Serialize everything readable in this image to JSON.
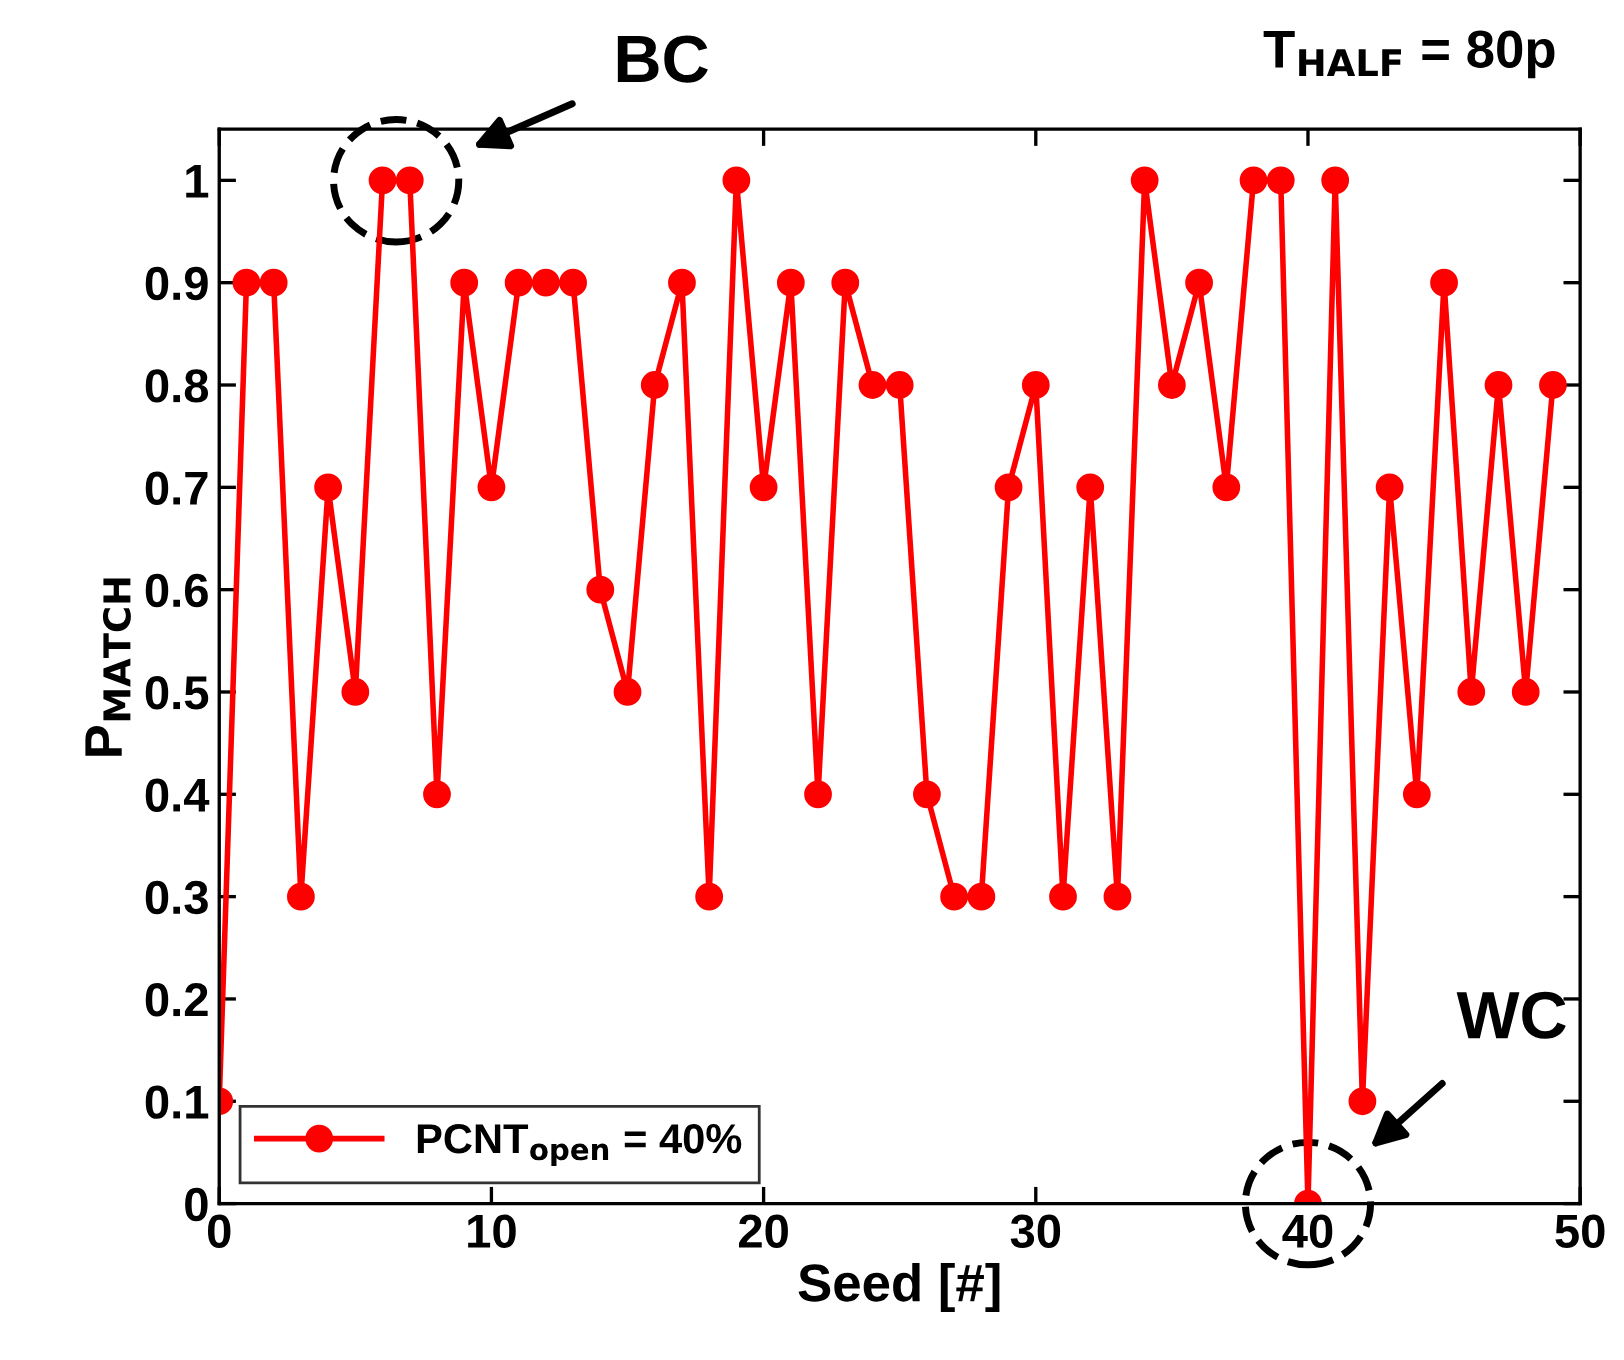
{
  "chart_data": {
    "type": "line",
    "xlabel": "Seed [#]",
    "ylabel": "P$_{MATCH}$",
    "x": [
      0,
      1,
      2,
      3,
      4,
      5,
      6,
      7,
      8,
      9,
      10,
      11,
      12,
      13,
      14,
      15,
      16,
      17,
      18,
      19,
      20,
      21,
      22,
      23,
      24,
      25,
      26,
      27,
      28,
      29,
      30,
      31,
      32,
      33,
      34,
      35,
      36,
      37,
      38,
      39,
      40,
      41,
      42,
      43,
      44,
      45,
      46,
      47,
      48,
      49
    ],
    "series": [
      {
        "name": "PCNT$_{open}$ = 40%",
        "color": "#ff0000",
        "values": [
          0.1,
          0.9,
          0.9,
          0.3,
          0.7,
          0.5,
          1,
          1,
          0.4,
          0.9,
          0.7,
          0.9,
          0.9,
          0.9,
          0.6,
          0.5,
          0.8,
          0.9,
          0.3,
          1,
          0.7,
          0.9,
          0.4,
          0.9,
          0.8,
          0.8,
          0.4,
          0.3,
          0.3,
          0.7,
          0.8,
          0.3,
          0.7,
          0.3,
          1,
          0.8,
          0.9,
          0.7,
          1,
          1,
          0,
          1,
          0.1,
          0.7,
          0.4,
          0.9,
          0.5,
          0.8,
          0.5,
          0.8
        ]
      }
    ],
    "xlim": [
      0,
      50
    ],
    "xticks": [
      0,
      10,
      20,
      30,
      40,
      50
    ],
    "ylim": [
      0,
      1.05
    ],
    "yticks": [
      0,
      0.1,
      0.2,
      0.3,
      0.4,
      0.5,
      0.6,
      0.7,
      0.8,
      0.9,
      1
    ],
    "marker": "circle",
    "line_style": "solid",
    "grid": false,
    "legend": "bottom left",
    "annotations": [
      "BC",
      "WC",
      "T$_{HALF}$ = 80p"
    ]
  }
}
